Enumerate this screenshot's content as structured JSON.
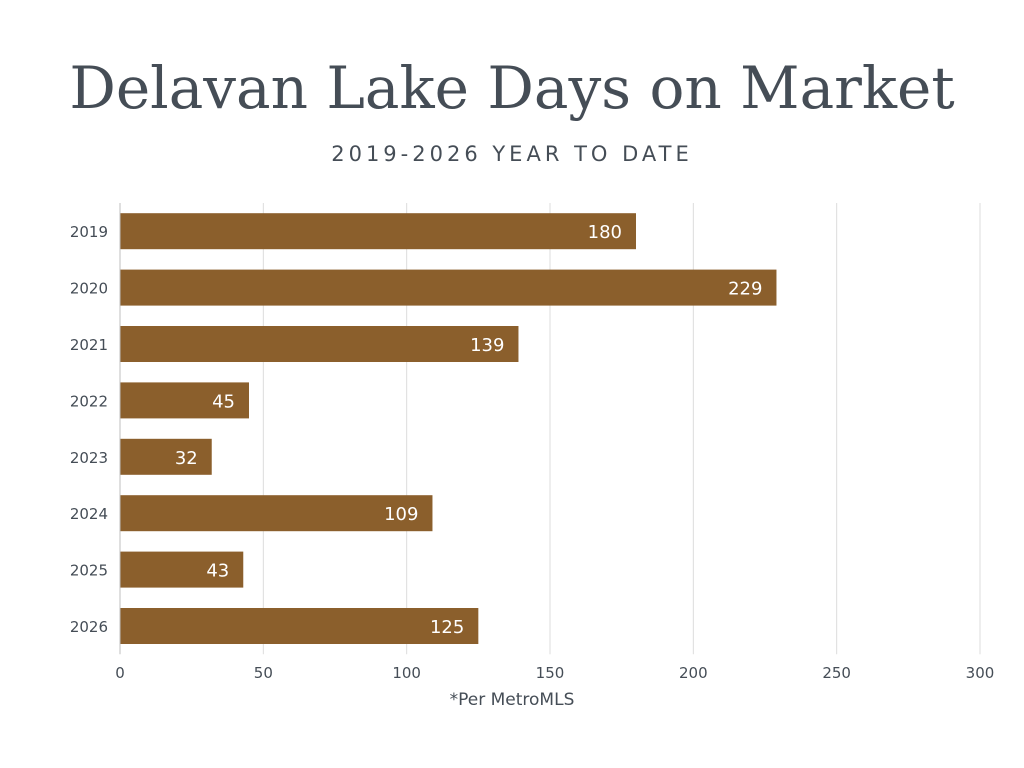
{
  "header": {
    "title": "Delavan Lake Days on Market",
    "subtitle": "2019-2026 YEAR TO DATE"
  },
  "footnote": "*Per MetroMLS",
  "colors": {
    "bar": "#8b5f2c",
    "grid": "#dcdcdc",
    "text": "#454d56",
    "bar_label": "#ffffff"
  },
  "chart_data": {
    "type": "bar",
    "orientation": "horizontal",
    "categories": [
      "2019",
      "2020",
      "2021",
      "2022",
      "2023",
      "2024",
      "2025",
      "2026"
    ],
    "values": [
      180,
      229,
      139,
      45,
      32,
      109,
      43,
      125
    ],
    "data_labels": [
      "180",
      "229",
      "139",
      "45",
      "32",
      "109",
      "43",
      "125"
    ],
    "title": "Delavan Lake Days on Market",
    "subtitle": "2019-2026 YEAR TO DATE",
    "xlabel": "",
    "ylabel": "",
    "xlim": [
      0,
      300
    ],
    "xticks": [
      0,
      50,
      100,
      150,
      200,
      250,
      300
    ],
    "xtick_labels": [
      "0",
      "50",
      "100",
      "150",
      "200",
      "250",
      "300"
    ],
    "grid": "vertical",
    "legend": "none"
  }
}
